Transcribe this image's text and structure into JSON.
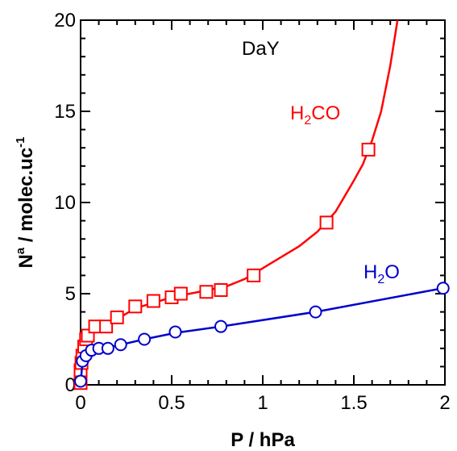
{
  "chart_data": {
    "type": "scatter",
    "title": "",
    "xlabel": "P / hPa",
    "ylabel_main": "N",
    "ylabel_sup": "a",
    "ylabel_rest": " / molec.uc",
    "ylabel_sup2": "-1",
    "xlim": [
      0,
      2
    ],
    "ylim": [
      0,
      20
    ],
    "x_ticks": [
      0,
      0.5,
      1,
      1.5,
      2
    ],
    "x_tick_labels": [
      "0",
      "0.5",
      "1",
      "1.5",
      "2"
    ],
    "y_ticks": [
      0,
      5,
      10,
      15,
      20
    ],
    "y_tick_labels": [
      "0",
      "5",
      "10",
      "15",
      "20"
    ],
    "grid": false,
    "annotations": {
      "sample": "DaY",
      "h2co_main": "H",
      "h2co_sub": "2",
      "h2co_rest": "CO",
      "h2o_main": "H",
      "h2o_sub": "2",
      "h2o_rest": "O"
    },
    "series": [
      {
        "marker": "square",
        "color": "#ff0000",
        "points": [
          [
            0.0,
            0.1
          ],
          [
            0.0,
            0.4
          ],
          [
            0.0,
            0.8
          ],
          [
            0.005,
            1.2
          ],
          [
            0.01,
            1.6
          ],
          [
            0.02,
            2.1
          ],
          [
            0.03,
            2.5
          ],
          [
            0.04,
            2.7
          ],
          [
            0.08,
            3.2
          ],
          [
            0.14,
            3.2
          ],
          [
            0.2,
            3.7
          ],
          [
            0.3,
            4.3
          ],
          [
            0.4,
            4.6
          ],
          [
            0.5,
            4.8
          ],
          [
            0.55,
            5.0
          ],
          [
            0.69,
            5.1
          ],
          [
            0.77,
            5.2
          ],
          [
            0.95,
            6.0
          ],
          [
            1.35,
            8.9
          ],
          [
            1.58,
            12.9
          ]
        ],
        "curve": [
          [
            0.0,
            0.0
          ],
          [
            0.005,
            0.8
          ],
          [
            0.02,
            2.0
          ],
          [
            0.05,
            2.7
          ],
          [
            0.1,
            3.1
          ],
          [
            0.2,
            3.6
          ],
          [
            0.3,
            4.2
          ],
          [
            0.4,
            4.5
          ],
          [
            0.5,
            4.8
          ],
          [
            0.6,
            5.0
          ],
          [
            0.7,
            5.2
          ],
          [
            0.8,
            5.4
          ],
          [
            0.9,
            5.8
          ],
          [
            1.0,
            6.4
          ],
          [
            1.1,
            7.0
          ],
          [
            1.2,
            7.6
          ],
          [
            1.3,
            8.4
          ],
          [
            1.4,
            9.5
          ],
          [
            1.5,
            11.2
          ],
          [
            1.55,
            12.1
          ],
          [
            1.6,
            13.4
          ],
          [
            1.65,
            15.0
          ],
          [
            1.7,
            17.5
          ],
          [
            1.74,
            20.0
          ]
        ]
      },
      {
        "marker": "circle",
        "color": "#0000cc",
        "points": [
          [
            0.0,
            0.2
          ],
          [
            0.01,
            1.3
          ],
          [
            0.03,
            1.6
          ],
          [
            0.06,
            1.9
          ],
          [
            0.1,
            2.0
          ],
          [
            0.15,
            2.0
          ],
          [
            0.22,
            2.2
          ],
          [
            0.35,
            2.5
          ],
          [
            0.52,
            2.9
          ],
          [
            0.77,
            3.2
          ],
          [
            1.29,
            4.0
          ],
          [
            1.99,
            5.3
          ]
        ],
        "curve": [
          [
            0.0,
            0.0
          ],
          [
            0.01,
            1.3
          ],
          [
            0.03,
            1.6
          ],
          [
            0.06,
            1.85
          ],
          [
            0.1,
            1.95
          ],
          [
            0.15,
            2.05
          ],
          [
            0.22,
            2.2
          ],
          [
            0.35,
            2.5
          ],
          [
            0.52,
            2.85
          ],
          [
            0.77,
            3.2
          ],
          [
            1.29,
            4.0
          ],
          [
            1.99,
            5.3
          ]
        ]
      }
    ]
  }
}
